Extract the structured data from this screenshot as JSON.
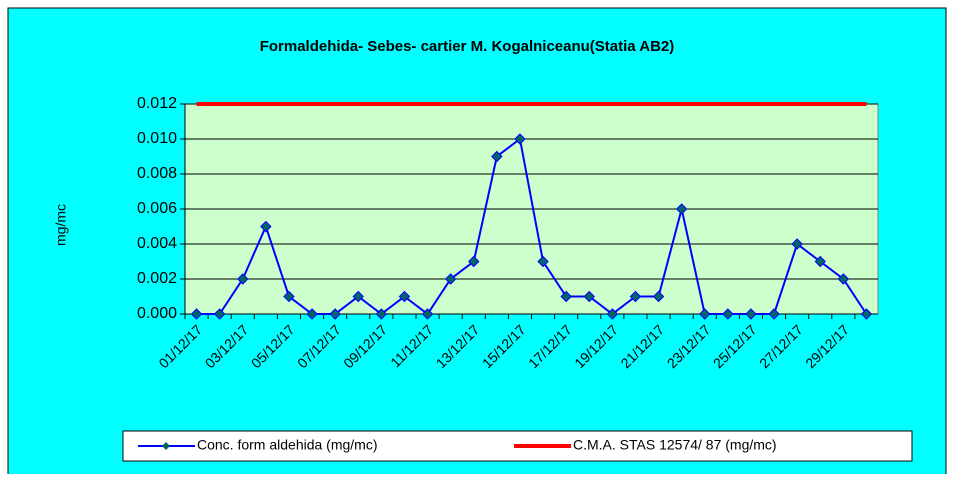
{
  "chart_data": {
    "type": "line",
    "title": "Formaldehida- Sebes- cartier M. Kogalniceanu(Statia AB2)",
    "y_label": "mg/mc",
    "categories": [
      "01/12/17",
      null,
      "03/12/17",
      null,
      "05/12/17",
      null,
      "07/12/17",
      null,
      "09/12/17",
      null,
      "11/12/17",
      null,
      "13/12/17",
      null,
      "15/12/17",
      null,
      "17/12/17",
      null,
      "19/12/17",
      null,
      "21/12/17",
      null,
      "23/12/17",
      null,
      "25/12/17",
      null,
      "27/12/17",
      null,
      "29/12/17",
      null
    ],
    "series": [
      {
        "name": "Conc. form aldehida (mg/mc)",
        "color": "#0000ff",
        "marker_color": "#006666",
        "values": [
          0,
          0,
          0.002,
          0.005,
          0.001,
          0,
          0,
          0.001,
          0,
          0.001,
          0,
          0.002,
          0.003,
          0.009,
          0.01,
          0.003,
          0.001,
          0.001,
          0,
          0.001,
          0.001,
          0.006,
          0,
          0,
          0,
          0,
          0.004,
          0.003,
          0.002,
          0
        ]
      },
      {
        "name": "C.M.A. STAS 12574/ 87 (mg/mc)",
        "color": "#ff0000",
        "values": [
          0.012,
          0.012,
          0.012,
          0.012,
          0.012,
          0.012,
          0.012,
          0.012,
          0.012,
          0.012,
          0.012,
          0.012,
          0.012,
          0.012,
          0.012,
          0.012,
          0.012,
          0.012,
          0.012,
          0.012,
          0.012,
          0.012,
          0.012,
          0.012,
          0.012,
          0.012,
          0.012,
          0.012,
          0.012,
          0.012
        ]
      }
    ],
    "ylim": [
      0,
      0.012
    ],
    "yticks": [
      {
        "value": 0,
        "label": "0.000"
      },
      {
        "value": 0.002,
        "label": "0.002"
      },
      {
        "value": 0.004,
        "label": "0.004"
      },
      {
        "value": 0.006,
        "label": "0.006"
      },
      {
        "value": 0.008,
        "label": "0.008"
      },
      {
        "value": 0.01,
        "label": "0.010"
      },
      {
        "value": 0.012,
        "label": "0.012"
      }
    ],
    "grid": true,
    "legend": "bottom",
    "plot_background": "#ccffcc",
    "background": "#00ffff"
  }
}
